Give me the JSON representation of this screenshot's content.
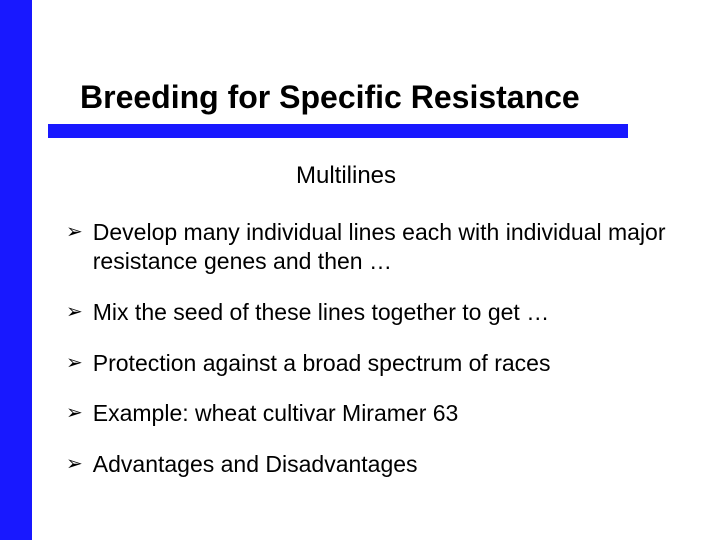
{
  "slide": {
    "title": "Breeding for Specific Resistance",
    "subtitle": "Multilines",
    "bullets": [
      "Develop many individual lines each with individual major resistance genes and then …",
      "Mix the seed of these lines together to get …",
      "Protection against a broad spectrum of races",
      "Example: wheat cultivar Miramer 63",
      "Advantages and Disadvantages"
    ],
    "bullet_marker": "➢"
  },
  "style": {
    "accent_color": "#1818ff",
    "background_color": "#ffffff",
    "text_color": "#000000",
    "title_fontsize": 32,
    "subtitle_fontsize": 24,
    "body_fontsize": 23,
    "left_stripe_width": 32,
    "underline_height": 14
  }
}
